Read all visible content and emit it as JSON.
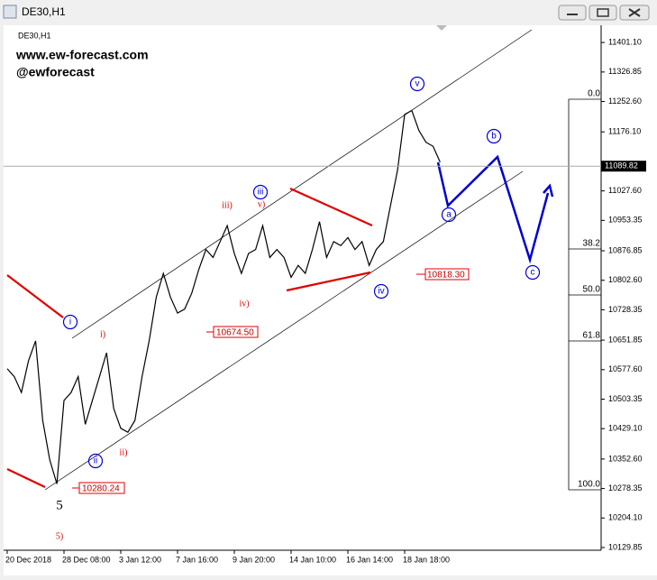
{
  "window_title": "DE30,H1",
  "chart_data": {
    "type": "line",
    "title": "DE30,H1",
    "watermark": [
      "www.ew-forecast.com",
      "@ewforecast"
    ],
    "categories": [
      "20 Dec 2018",
      null,
      null,
      null,
      null,
      null,
      null,
      null,
      "28 Dec 08:00",
      null,
      null,
      null,
      null,
      null,
      null,
      null,
      "3 Jan 12:00",
      null,
      null,
      null,
      null,
      null,
      null,
      null,
      "7 Jan 16:00",
      null,
      null,
      null,
      null,
      null,
      null,
      null,
      "9 Jan 20:00",
      null,
      null,
      null,
      null,
      null,
      null,
      null,
      "14 Jan 10:00",
      null,
      null,
      null,
      null,
      null,
      null,
      null,
      "16 Jan 14:00",
      null,
      null,
      null,
      null,
      null,
      null,
      null,
      "18 Jan 18:00",
      null,
      null,
      null,
      null,
      null
    ],
    "series": [
      {
        "name": "DE30",
        "color": "#000000",
        "values": [
          10580,
          10560,
          10520,
          10600,
          10650,
          10450,
          10350,
          10290,
          10500,
          10520,
          10560,
          10440,
          10500,
          10560,
          10620,
          10480,
          10430,
          10420,
          10450,
          10560,
          10650,
          10760,
          10820,
          10760,
          10720,
          10730,
          10770,
          10830,
          10880,
          10860,
          10900,
          10940,
          10870,
          10820,
          10870,
          10880,
          10940,
          10860,
          10880,
          10860,
          10810,
          10840,
          10820,
          10880,
          10950,
          10860,
          10900,
          10890,
          10910,
          10880,
          10900,
          10840,
          10880,
          10900,
          10990,
          11080,
          11220,
          11230,
          11180,
          11150,
          11140,
          11100
        ]
      }
    ],
    "current_price": {
      "value": 11089.82,
      "label": "11089.82"
    },
    "ylim": [
      10123.0,
      11440.0
    ],
    "yticks": [
      {
        "value": 11401.1,
        "label": "11401.10"
      },
      11326.85,
      {
        "value": 11252.6,
        "label": "11252.60"
      },
      {
        "value": 11176.1,
        "label": "11176.10"
      },
      {
        "value": 11027.6,
        "label": "11027.60"
      },
      10953.35,
      10876.85,
      {
        "value": 10802.6,
        "label": "10802.60"
      },
      10728.35,
      10651.85,
      {
        "value": 10577.6,
        "label": "10577.60"
      },
      10503.35,
      {
        "value": 10429.1,
        "label": "10429.10"
      },
      {
        "value": 10352.6,
        "label": "10352.60"
      },
      10278.35,
      {
        "value": 10204.1,
        "label": "10204.10"
      },
      10129.85
    ],
    "price_labels": [
      "10280.24",
      "10674.50",
      "10818.30"
    ],
    "fib_levels": [
      "0.0",
      "38.2",
      "50.0",
      "61.8",
      "100.0"
    ],
    "wave_labels": {
      "blue": [
        "i",
        "ii",
        "iii",
        "iv",
        "v"
      ],
      "red": [
        "i)",
        "ii)",
        "iii)",
        "iv)",
        "v)",
        "5)"
      ],
      "black": "5",
      "abc": [
        "a",
        "b",
        "c"
      ]
    }
  }
}
